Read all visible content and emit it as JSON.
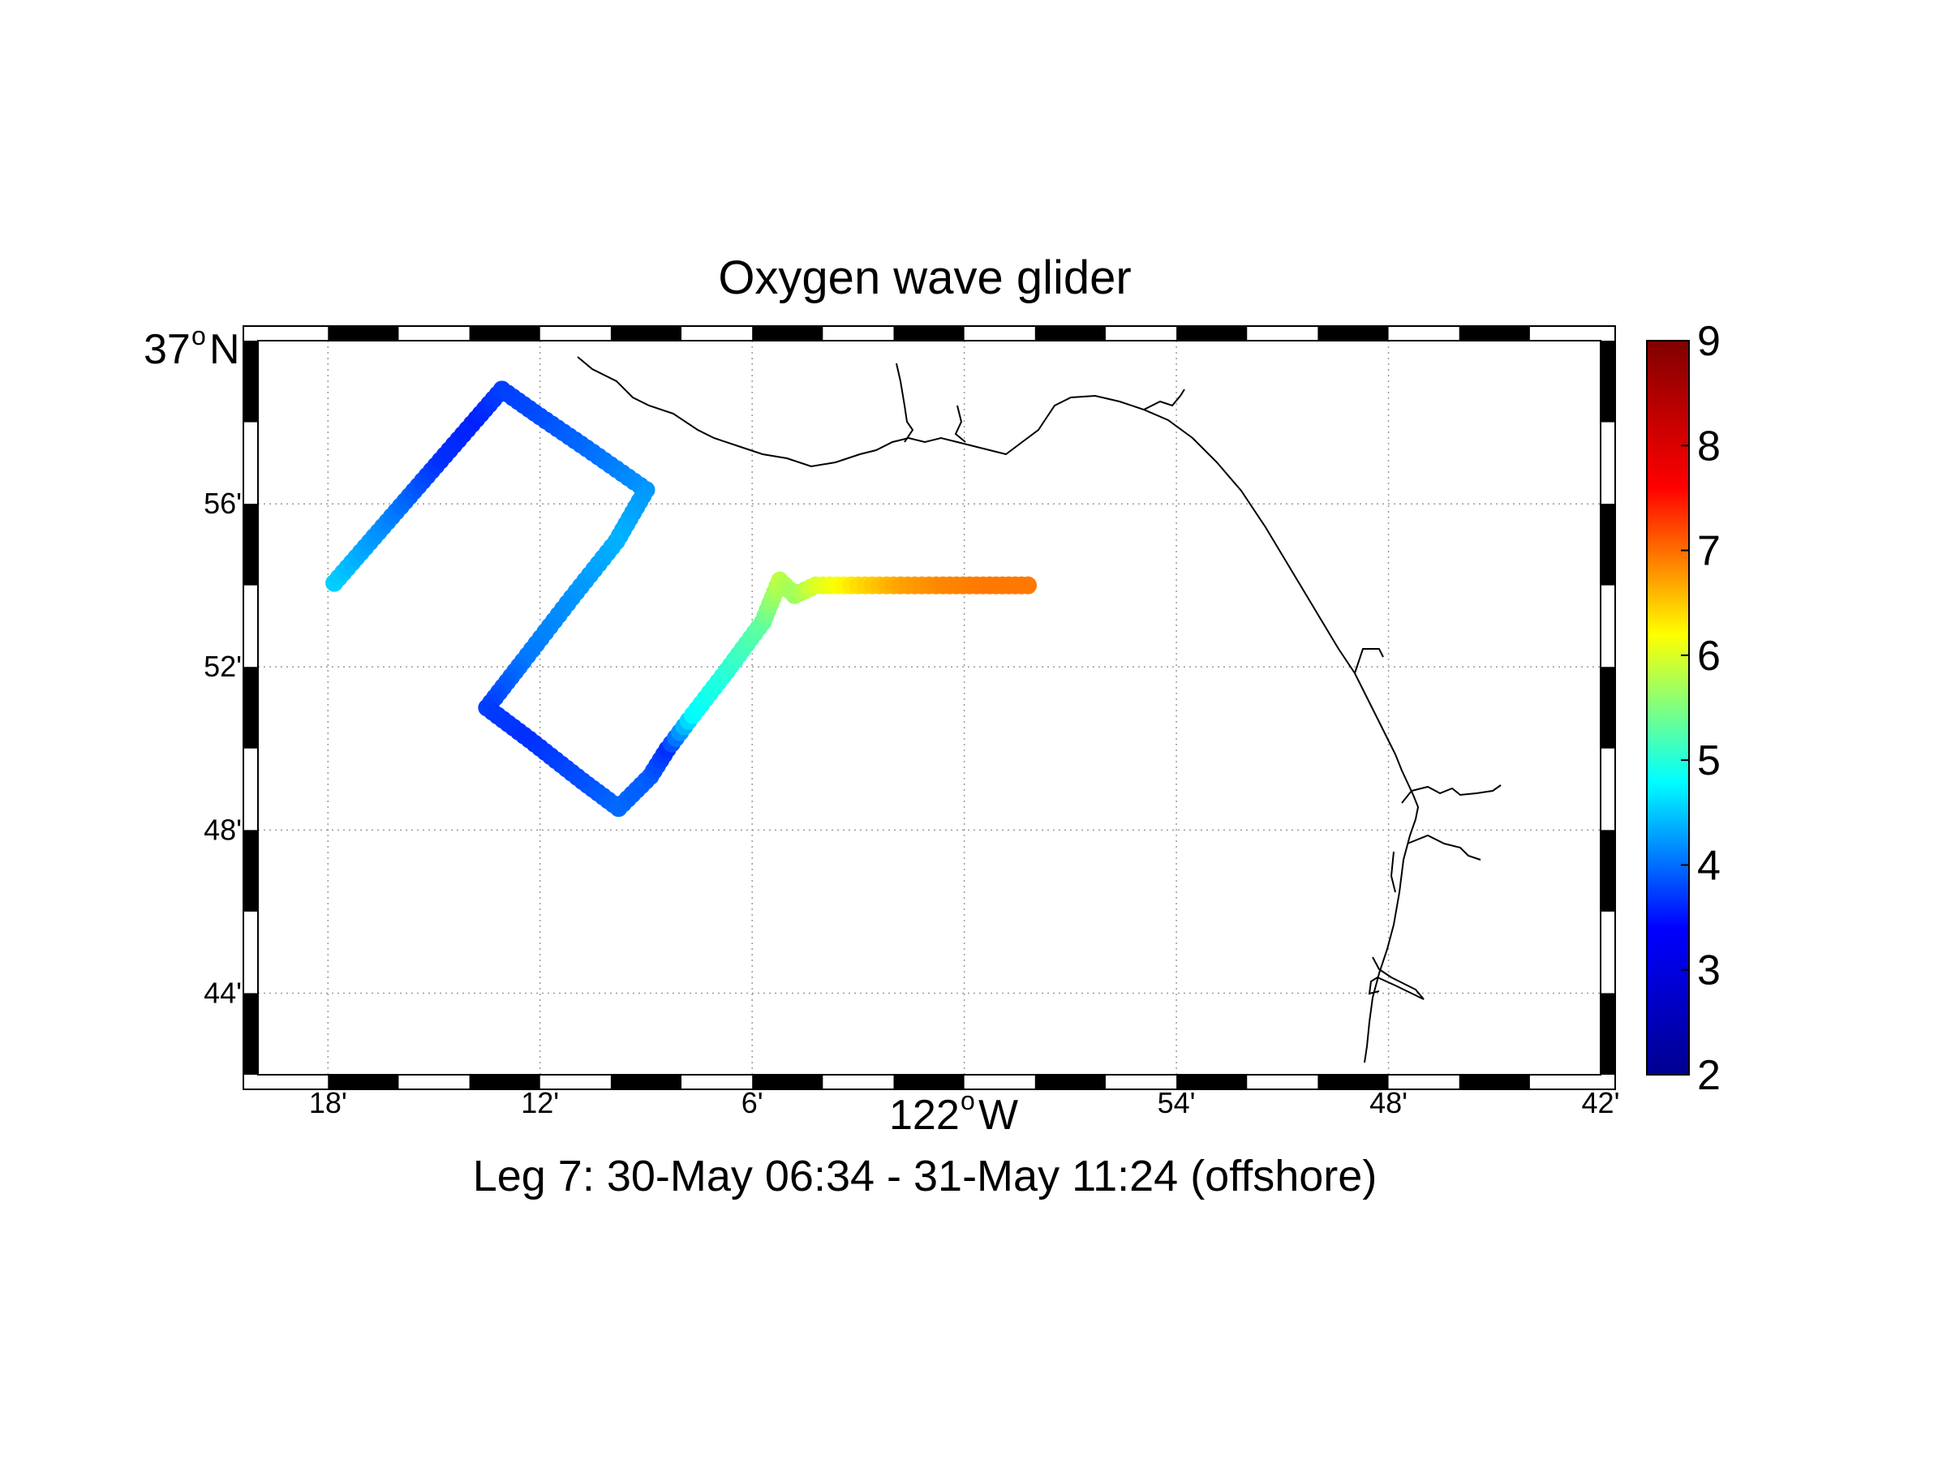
{
  "title": "Oxygen wave glider",
  "subtitle": "Leg 7: 30-May 06:34 - 31-May 11:24 (offshore)",
  "map": {
    "lon_range": [
      -122.333,
      -121.7
    ],
    "lat_range": [
      36.7,
      37.0
    ],
    "grid": true,
    "lat_corner_label": {
      "deg": "37",
      "sup": "o",
      "hemi": "N"
    },
    "lon_center_label": {
      "deg": "122",
      "sup": "o",
      "hemi": "W"
    },
    "lon_ticks": [
      {
        "value": -122.3,
        "label": "18'"
      },
      {
        "value": -122.2,
        "label": "12'"
      },
      {
        "value": -122.1,
        "label": "6'"
      },
      {
        "value": -121.9,
        "label": "54'"
      },
      {
        "value": -121.8,
        "label": "48'"
      },
      {
        "value": -121.7,
        "label": "42'"
      }
    ],
    "lon_center": -122.0,
    "lat_ticks": [
      {
        "value": 36.9333,
        "label": "56'"
      },
      {
        "value": 36.8667,
        "label": "52'"
      },
      {
        "value": 36.8,
        "label": "48'"
      },
      {
        "value": 36.7333,
        "label": "44'"
      }
    ]
  },
  "colorbar": {
    "range": [
      2,
      9
    ],
    "ticks": [
      "2",
      "3",
      "4",
      "5",
      "6",
      "7",
      "8",
      "9"
    ],
    "colormap": "jet",
    "stops": [
      "#00008f",
      "#0000ff",
      "#00ffff",
      "#ffff00",
      "#ff0000",
      "#800000"
    ]
  },
  "chart_data": {
    "type": "scatter",
    "title": "Oxygen wave glider",
    "subtitle": "Leg 7: 30-May 06:34 - 31-May 11:24 (offshore)",
    "x_label": "122°W",
    "y_label": "37°N",
    "xlim": [
      -122.333,
      -121.7
    ],
    "ylim": [
      36.7,
      37.0
    ],
    "color_range": [
      2,
      9
    ],
    "track": [
      {
        "lon": -122.297,
        "lat": 36.901,
        "value": 4.3
      },
      {
        "lon": -122.272,
        "lat": 36.926,
        "value": 3.8
      },
      {
        "lon": -122.247,
        "lat": 36.951,
        "value": 3.2
      },
      {
        "lon": -122.23,
        "lat": 36.968,
        "value": 3.1
      },
      {
        "lon": -122.218,
        "lat": 36.98,
        "value": 3.3
      },
      {
        "lon": -122.2,
        "lat": 36.969,
        "value": 3.4
      },
      {
        "lon": -122.178,
        "lat": 36.956,
        "value": 3.6
      },
      {
        "lon": -122.15,
        "lat": 36.939,
        "value": 3.9
      },
      {
        "lon": -122.164,
        "lat": 36.918,
        "value": 4.1
      },
      {
        "lon": -122.185,
        "lat": 36.895,
        "value": 3.9
      },
      {
        "lon": -122.208,
        "lat": 36.869,
        "value": 3.7
      },
      {
        "lon": -122.225,
        "lat": 36.85,
        "value": 3.3
      },
      {
        "lon": -122.205,
        "lat": 36.837,
        "value": 3.2
      },
      {
        "lon": -122.18,
        "lat": 36.82,
        "value": 3.4
      },
      {
        "lon": -122.163,
        "lat": 36.809,
        "value": 3.6
      },
      {
        "lon": -122.148,
        "lat": 36.822,
        "value": 3.5
      },
      {
        "lon": -122.14,
        "lat": 36.833,
        "value": 3.2
      },
      {
        "lon": -122.128,
        "lat": 36.847,
        "value": 4.6
      },
      {
        "lon": -122.112,
        "lat": 36.865,
        "value": 4.9
      },
      {
        "lon": -122.095,
        "lat": 36.885,
        "value": 5.3
      },
      {
        "lon": -122.087,
        "lat": 36.902,
        "value": 5.9
      },
      {
        "lon": -122.08,
        "lat": 36.896,
        "value": 5.7
      },
      {
        "lon": -122.07,
        "lat": 36.9,
        "value": 6.1
      },
      {
        "lon": -122.05,
        "lat": 36.9,
        "value": 6.6
      },
      {
        "lon": -122.03,
        "lat": 36.9,
        "value": 7.0
      },
      {
        "lon": -122.01,
        "lat": 36.9,
        "value": 7.2
      },
      {
        "lon": -121.988,
        "lat": 36.9,
        "value": 7.3
      },
      {
        "lon": -121.97,
        "lat": 36.9,
        "value": 7.3
      }
    ]
  }
}
